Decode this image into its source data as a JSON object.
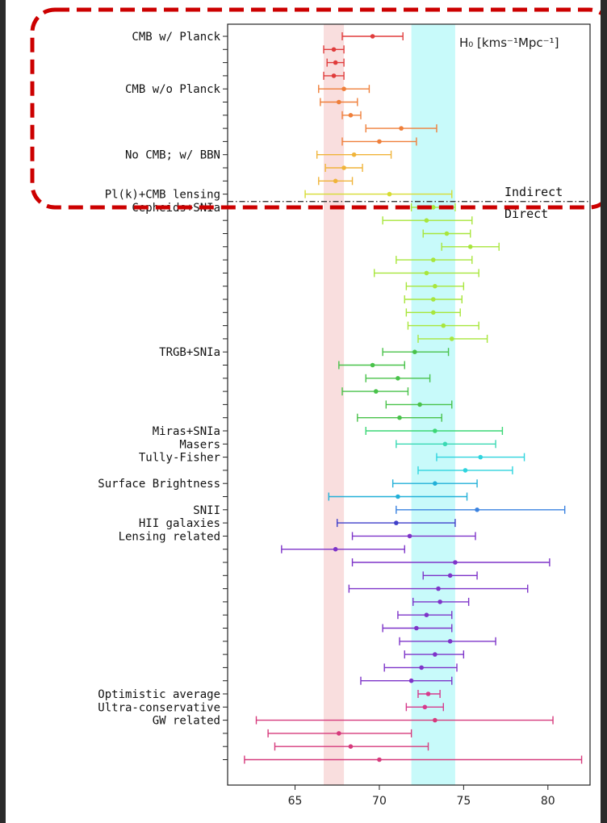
{
  "chart_data": {
    "type": "errorbar",
    "unit_label": "H₀ [kms⁻¹Mpc⁻¹]",
    "xlim": [
      61,
      82.5
    ],
    "xticks": [
      65,
      70,
      75,
      80
    ],
    "divider_labels": {
      "above": "Indirect",
      "below": "Direct"
    },
    "bands": [
      {
        "name": "planck",
        "from": 66.7,
        "to": 67.9,
        "color": "#f9dede"
      },
      {
        "name": "shoes",
        "from": 71.9,
        "to": 74.5,
        "color": "#c8fafa"
      }
    ],
    "highlight_color": "#cc0000",
    "points": [
      {
        "label": "CMB w/ Planck",
        "v": 69.6,
        "lo": 67.8,
        "hi": 71.4,
        "color": "#e03c3c"
      },
      {
        "label": "",
        "v": 67.3,
        "lo": 66.7,
        "hi": 67.9,
        "color": "#e03c3c"
      },
      {
        "label": "",
        "v": 67.4,
        "lo": 66.9,
        "hi": 67.9,
        "color": "#e03c3c"
      },
      {
        "label": "",
        "v": 67.3,
        "lo": 66.7,
        "hi": 67.9,
        "color": "#e03c3c"
      },
      {
        "label": "CMB w/o Planck",
        "v": 67.9,
        "lo": 66.4,
        "hi": 69.4,
        "color": "#ef7f3a"
      },
      {
        "label": "",
        "v": 67.6,
        "lo": 66.5,
        "hi": 68.7,
        "color": "#ef7f3a"
      },
      {
        "label": "",
        "v": 68.3,
        "lo": 67.8,
        "hi": 68.9,
        "color": "#ef7f3a"
      },
      {
        "label": "",
        "v": 71.3,
        "lo": 69.2,
        "hi": 73.4,
        "color": "#ef7f3a"
      },
      {
        "label": "",
        "v": 70.0,
        "lo": 67.8,
        "hi": 72.2,
        "color": "#ef7f3a"
      },
      {
        "label": "No CMB; w/ BBN",
        "v": 68.5,
        "lo": 66.3,
        "hi": 70.7,
        "color": "#f0b43a"
      },
      {
        "label": "",
        "v": 67.9,
        "lo": 66.8,
        "hi": 69.0,
        "color": "#f0b43a"
      },
      {
        "label": "",
        "v": 67.4,
        "lo": 66.4,
        "hi": 68.4,
        "color": "#f0b43a"
      },
      {
        "label": "Pl(k)+CMB lensing",
        "v": 70.6,
        "lo": 65.6,
        "hi": 74.3,
        "color": "#d7dc32"
      },
      {
        "label": "Cepheids+SNIa",
        "v": 73.2,
        "lo": 71.9,
        "hi": 74.5,
        "color": "#a8e63c"
      },
      {
        "label": "",
        "v": 72.8,
        "lo": 70.2,
        "hi": 75.5,
        "color": "#a8e63c"
      },
      {
        "label": "",
        "v": 74.0,
        "lo": 72.6,
        "hi": 75.4,
        "color": "#a8e63c"
      },
      {
        "label": "",
        "v": 75.4,
        "lo": 73.7,
        "hi": 77.1,
        "color": "#a8e63c"
      },
      {
        "label": "",
        "v": 73.2,
        "lo": 71.0,
        "hi": 75.5,
        "color": "#a8e63c"
      },
      {
        "label": "",
        "v": 72.8,
        "lo": 69.7,
        "hi": 75.9,
        "color": "#a8e63c"
      },
      {
        "label": "",
        "v": 73.3,
        "lo": 71.6,
        "hi": 75.0,
        "color": "#a8e63c"
      },
      {
        "label": "",
        "v": 73.2,
        "lo": 71.5,
        "hi": 74.9,
        "color": "#a8e63c"
      },
      {
        "label": "",
        "v": 73.2,
        "lo": 71.6,
        "hi": 74.8,
        "color": "#a8e63c"
      },
      {
        "label": "",
        "v": 73.8,
        "lo": 71.7,
        "hi": 75.9,
        "color": "#a8e63c"
      },
      {
        "label": "",
        "v": 74.3,
        "lo": 72.3,
        "hi": 76.4,
        "color": "#a8e63c"
      },
      {
        "label": "TRGB+SNIa",
        "v": 72.1,
        "lo": 70.2,
        "hi": 74.1,
        "color": "#49c24a"
      },
      {
        "label": "",
        "v": 69.6,
        "lo": 67.6,
        "hi": 71.5,
        "color": "#49c24a"
      },
      {
        "label": "",
        "v": 71.1,
        "lo": 69.2,
        "hi": 73.0,
        "color": "#49c24a"
      },
      {
        "label": "",
        "v": 69.8,
        "lo": 67.8,
        "hi": 71.7,
        "color": "#49c24a"
      },
      {
        "label": "",
        "v": 72.4,
        "lo": 70.4,
        "hi": 74.3,
        "color": "#49c24a"
      },
      {
        "label": "",
        "v": 71.2,
        "lo": 68.7,
        "hi": 73.7,
        "color": "#49c24a"
      },
      {
        "label": "Miras+SNIa",
        "v": 73.3,
        "lo": 69.2,
        "hi": 77.3,
        "color": "#3cd776"
      },
      {
        "label": "Masers",
        "v": 73.9,
        "lo": 71.0,
        "hi": 76.9,
        "color": "#3ad9b3"
      },
      {
        "label": "Tully-Fisher",
        "v": 76.0,
        "lo": 73.4,
        "hi": 78.6,
        "color": "#2fd4de"
      },
      {
        "label": "",
        "v": 75.1,
        "lo": 72.3,
        "hi": 77.9,
        "color": "#2fd4de"
      },
      {
        "label": "Surface Brightness",
        "v": 73.3,
        "lo": 70.8,
        "hi": 75.8,
        "color": "#22b0d8"
      },
      {
        "label": "",
        "v": 71.1,
        "lo": 67.0,
        "hi": 75.2,
        "color": "#22b0d8"
      },
      {
        "label": "SNII",
        "v": 75.8,
        "lo": 71.0,
        "hi": 81.0,
        "color": "#3a82e0"
      },
      {
        "label": "HII galaxies",
        "v": 71.0,
        "lo": 67.5,
        "hi": 74.5,
        "color": "#3f3fc9"
      },
      {
        "label": "Lensing related",
        "v": 71.8,
        "lo": 68.4,
        "hi": 75.7,
        "color": "#7e34c9"
      },
      {
        "label": "",
        "v": 67.4,
        "lo": 64.2,
        "hi": 71.5,
        "color": "#7e34c9"
      },
      {
        "label": "",
        "v": 74.5,
        "lo": 68.4,
        "hi": 80.1,
        "color": "#7e34c9"
      },
      {
        "label": "",
        "v": 74.2,
        "lo": 72.6,
        "hi": 75.8,
        "color": "#7e34c9"
      },
      {
        "label": "",
        "v": 73.5,
        "lo": 68.2,
        "hi": 78.8,
        "color": "#7e34c9"
      },
      {
        "label": "",
        "v": 73.6,
        "lo": 72.0,
        "hi": 75.3,
        "color": "#7e34c9"
      },
      {
        "label": "",
        "v": 72.8,
        "lo": 71.1,
        "hi": 74.3,
        "color": "#7e34c9"
      },
      {
        "label": "",
        "v": 72.2,
        "lo": 70.2,
        "hi": 74.3,
        "color": "#7e34c9"
      },
      {
        "label": "",
        "v": 74.2,
        "lo": 71.2,
        "hi": 76.9,
        "color": "#7e34c9"
      },
      {
        "label": "",
        "v": 73.3,
        "lo": 71.5,
        "hi": 75.0,
        "color": "#7e34c9"
      },
      {
        "label": "",
        "v": 72.5,
        "lo": 70.3,
        "hi": 74.6,
        "color": "#7e34c9"
      },
      {
        "label": "",
        "v": 71.9,
        "lo": 68.9,
        "hi": 74.3,
        "color": "#7e34c9"
      },
      {
        "label": "Optimistic average",
        "v": 72.9,
        "lo": 72.3,
        "hi": 73.6,
        "color": "#d63a8c"
      },
      {
        "label": "Ultra-conservative",
        "v": 72.7,
        "lo": 71.6,
        "hi": 73.8,
        "color": "#d63a8c"
      },
      {
        "label": "GW related",
        "v": 73.3,
        "lo": 62.7,
        "hi": 80.3,
        "color": "#d63a7c"
      },
      {
        "label": "",
        "v": 67.6,
        "lo": 63.4,
        "hi": 71.9,
        "color": "#d63a7c"
      },
      {
        "label": "",
        "v": 68.3,
        "lo": 63.8,
        "hi": 72.9,
        "color": "#d63a7c"
      },
      {
        "label": "",
        "v": 70.0,
        "lo": 62.0,
        "hi": 82.0,
        "color": "#d63a7c"
      }
    ]
  }
}
